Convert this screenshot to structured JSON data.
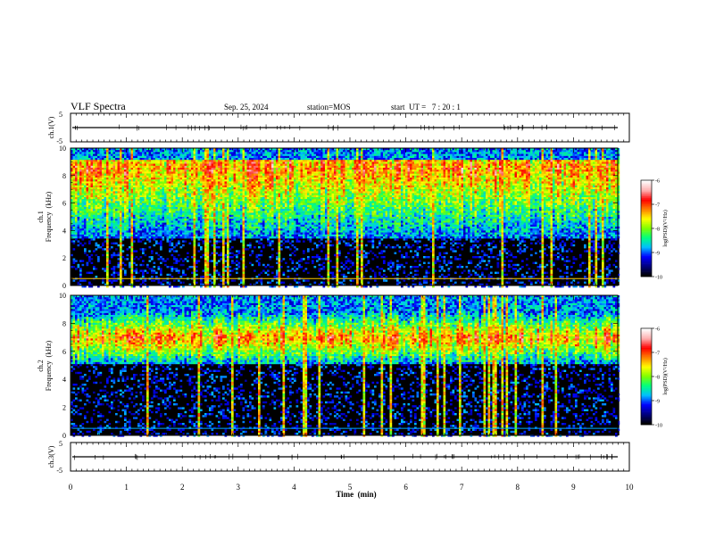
{
  "header": {
    "title": "VLF Spectra",
    "date": "Sep. 25, 2024",
    "station": "station=MOS",
    "start": "start  UT =   7 : 20 : 1"
  },
  "chart_data": {
    "type": "heatmap",
    "xlabel": "Time  (min)",
    "xlim": [
      0,
      10
    ],
    "xticks": [
      "0",
      "1",
      "2",
      "3",
      "4",
      "5",
      "6",
      "7",
      "8",
      "9",
      "10"
    ],
    "panels": [
      {
        "kind": "waveform",
        "ylabel": "ch.1(V)",
        "ylim": [
          -5,
          5
        ],
        "yticks": [
          "5",
          "-5"
        ],
        "level": 0
      },
      {
        "kind": "spectrogram",
        "channel": "ch.1",
        "ylabel_line1": "ch.1",
        "ylabel_line2": "Frequency  (kHz)",
        "ylim": [
          0,
          10
        ],
        "yticks": [
          "0",
          "2",
          "4",
          "6",
          "8",
          "10"
        ],
        "band_khz": [
          3.5,
          9.2
        ],
        "band_peak_khz": 8.6,
        "colorbar": {
          "label": "log(PSD)(V²/Hz)",
          "range": [
            -10,
            -6
          ],
          "ticks": [
            "-6",
            "-7",
            "-8",
            "-9",
            "-10"
          ]
        }
      },
      {
        "kind": "spectrogram",
        "channel": "ch.2",
        "ylabel_line1": "ch.2",
        "ylabel_line2": "Frequency  (kHz)",
        "ylim": [
          0,
          10
        ],
        "yticks": [
          "0",
          "2",
          "4",
          "6",
          "8",
          "10"
        ],
        "band_khz": [
          5.2,
          9.0
        ],
        "band_peak_khz": 7.0,
        "colorbar": {
          "label": "log(PSD)(V²/Hz)",
          "range": [
            -10,
            -6
          ],
          "ticks": [
            "-6",
            "-7",
            "-8",
            "-9",
            "-10"
          ]
        }
      },
      {
        "kind": "waveform",
        "ylabel": "ch.3(V)",
        "ylim": [
          -5,
          5
        ],
        "yticks": [
          "5",
          "-5"
        ],
        "level": 0
      }
    ],
    "data_end_min": 9.82,
    "colormap": [
      "#000000",
      "#00007f",
      "#0000ff",
      "#00bfff",
      "#00ff7f",
      "#7fff00",
      "#ffff00",
      "#ff7f00",
      "#ff0000",
      "#ffb0b0",
      "#ffffff"
    ]
  }
}
